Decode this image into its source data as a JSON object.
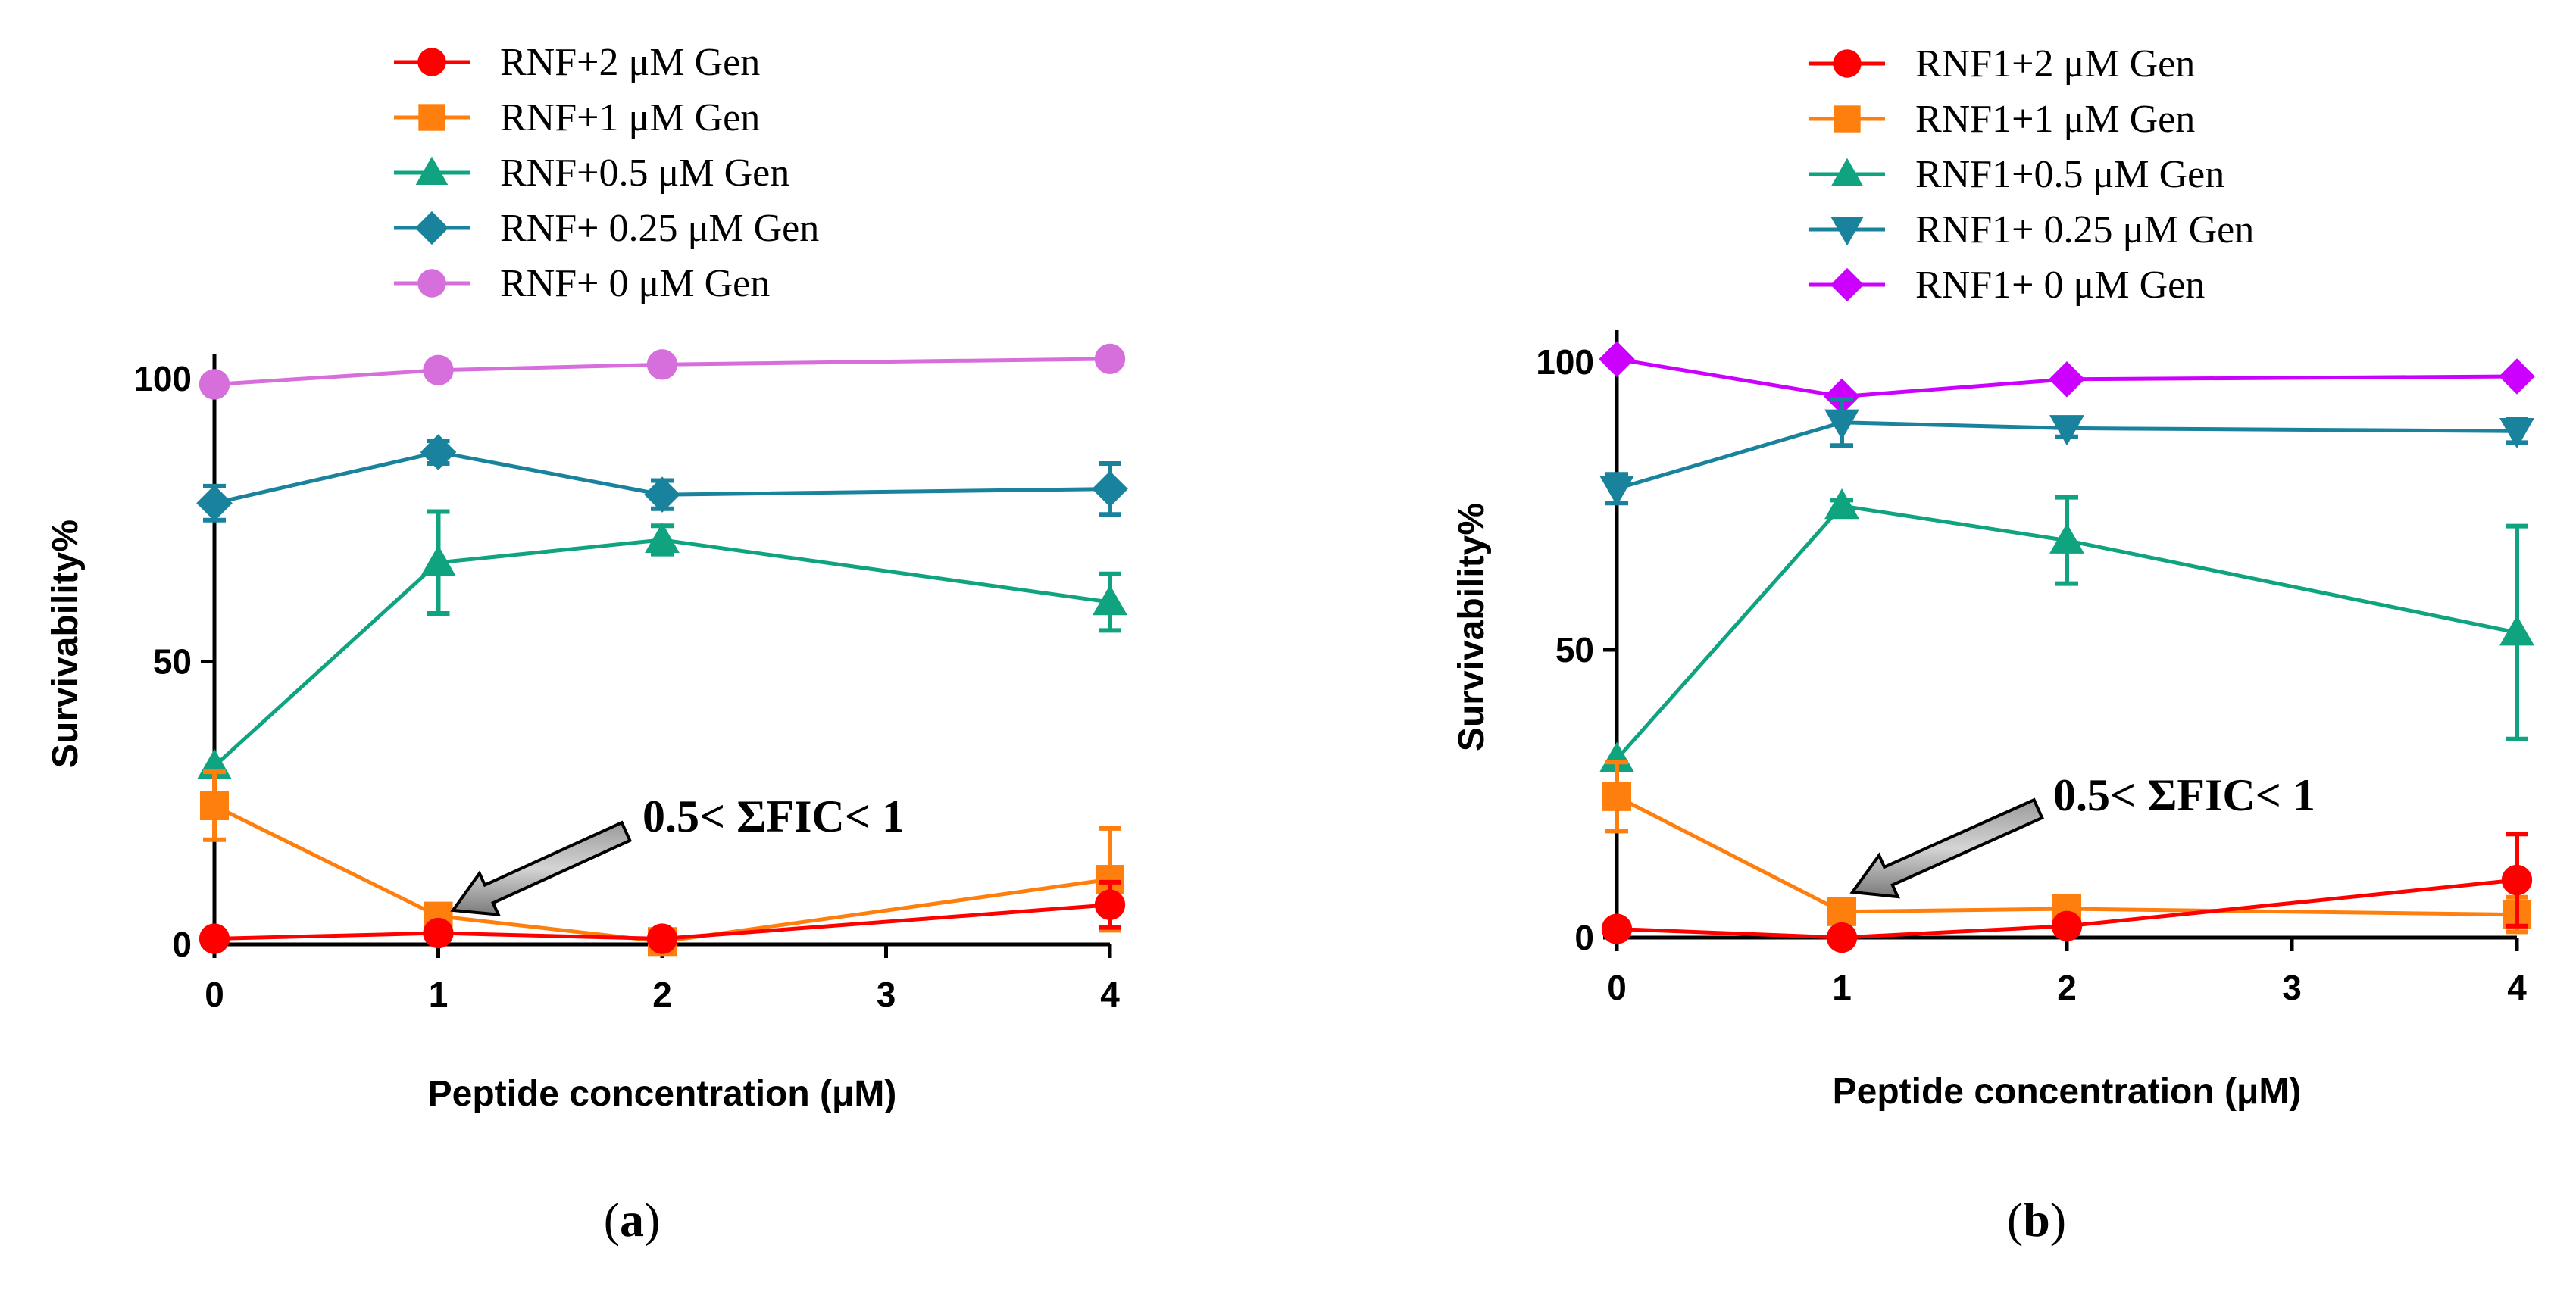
{
  "chart_data": [
    {
      "type": "line",
      "panel_label": "(a)",
      "panel_letter": "a",
      "xlabel": "Peptide concentration (μM)",
      "ylabel": "Survivability%",
      "x": [
        0,
        1,
        2,
        4
      ],
      "xticks": [
        "0",
        "1",
        "2",
        "3",
        "4"
      ],
      "yticks": [
        "0",
        "50",
        "100"
      ],
      "ylim": [
        0,
        103
      ],
      "annotation": {
        "text": "0.5< ΣFIC< 1",
        "points_to": {
          "x": 1,
          "y": 5
        }
      },
      "series": [
        {
          "name": "RNF+2 μM Gen",
          "color": "#ff0000",
          "marker": "circle",
          "values": [
            1,
            2,
            1,
            7
          ],
          "errors": [
            0,
            0,
            0,
            4
          ]
        },
        {
          "name": "RNF+1 μM Gen",
          "color": "#ff7f0e",
          "marker": "square",
          "values": [
            24.5,
            5,
            0.5,
            11.5
          ],
          "errors": [
            6,
            0,
            0,
            9
          ]
        },
        {
          "name": "RNF+0.5 μM Gen",
          "color": "#10a37f",
          "marker": "triangle-up",
          "values": [
            31.5,
            67.5,
            71.5,
            60.5
          ],
          "errors": [
            0,
            9,
            2.5,
            5
          ]
        },
        {
          "name": "RNF+ 0.25 μM Gen",
          "color": "#19829c",
          "marker": "diamond",
          "values": [
            78,
            87,
            79.5,
            80.5
          ],
          "errors": [
            3,
            2,
            2.5,
            4.5
          ]
        },
        {
          "name": "RNF+ 0 μM Gen",
          "color": "#d66edc",
          "marker": "circle",
          "values": [
            99,
            101.5,
            102.5,
            103.5
          ],
          "errors": [
            0,
            0,
            0,
            0
          ]
        }
      ]
    },
    {
      "type": "line",
      "panel_label": "(b)",
      "panel_letter": "b",
      "xlabel": "Peptide concentration (μM)",
      "ylabel": "Survivability%",
      "x": [
        0,
        1,
        2,
        4
      ],
      "xticks": [
        "0",
        "1",
        "2",
        "3",
        "4"
      ],
      "yticks": [
        "0",
        "50",
        "100"
      ],
      "ylim": [
        0,
        101
      ],
      "annotation": {
        "text": "0.5< ΣFIC< 1",
        "points_to": {
          "x": 1,
          "y": 5
        }
      },
      "series": [
        {
          "name": "RNF1+2 μM Gen",
          "color": "#ff0000",
          "marker": "circle",
          "values": [
            1.5,
            0,
            2,
            10
          ],
          "errors": [
            0,
            0,
            0,
            8
          ]
        },
        {
          "name": "RNF1+1 μM Gen",
          "color": "#ff7f0e",
          "marker": "square",
          "values": [
            24.5,
            4.5,
            5,
            4
          ],
          "errors": [
            6,
            2,
            1.5,
            3
          ]
        },
        {
          "name": "RNF1+0.5 μM Gen",
          "color": "#10a37f",
          "marker": "triangle-up",
          "values": [
            31,
            75,
            69,
            53
          ],
          "errors": [
            0,
            1,
            7.5,
            18.5
          ]
        },
        {
          "name": "RNF1+ 0.25 μM Gen",
          "color": "#19829c",
          "marker": "triangle-down",
          "values": [
            78,
            89.5,
            88.5,
            88
          ],
          "errors": [
            2.5,
            4,
            1.5,
            2
          ]
        },
        {
          "name": "RNF1+ 0 μM Gen",
          "color": "#cc00ff",
          "marker": "diamond",
          "values": [
            100.5,
            94,
            97,
            97.5
          ],
          "errors": [
            0,
            0,
            0,
            0
          ]
        }
      ]
    }
  ]
}
